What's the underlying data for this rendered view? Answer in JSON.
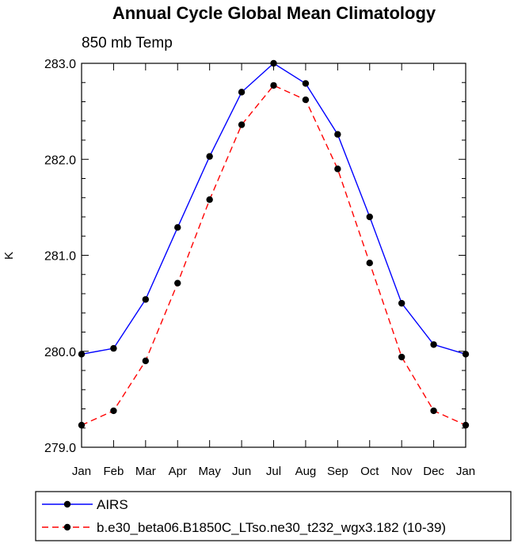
{
  "chart_data": {
    "type": "line",
    "title": "Annual Cycle Global Mean Climatology",
    "subtitle": "850 mb Temp",
    "xlabel": "",
    "ylabel": "K",
    "categories": [
      "Jan",
      "Feb",
      "Mar",
      "Apr",
      "May",
      "Jun",
      "Jul",
      "Aug",
      "Sep",
      "Oct",
      "Nov",
      "Dec",
      "Jan"
    ],
    "ylim": [
      279.0,
      283.0
    ],
    "yticks": [
      "279.0",
      "280.0",
      "281.0",
      "282.0",
      "283.0"
    ],
    "grid": false,
    "legend_position": "bottom",
    "series": [
      {
        "name": "AIRS",
        "color": "#0000ff",
        "line_style": "solid",
        "marker": "filled-circle",
        "values": [
          279.97,
          280.03,
          280.54,
          281.29,
          282.03,
          282.7,
          283.0,
          282.79,
          282.26,
          281.4,
          280.5,
          280.07,
          279.97
        ]
      },
      {
        "name": "b.e30_beta06.B1850C_LTso.ne30_t232_wgx3.182 (10-39)",
        "color": "#ff0000",
        "line_style": "dashed",
        "marker": "filled-circle",
        "values": [
          279.23,
          279.38,
          279.9,
          280.71,
          281.58,
          282.36,
          282.77,
          282.62,
          281.9,
          280.92,
          279.94,
          279.38,
          279.23
        ]
      }
    ]
  }
}
